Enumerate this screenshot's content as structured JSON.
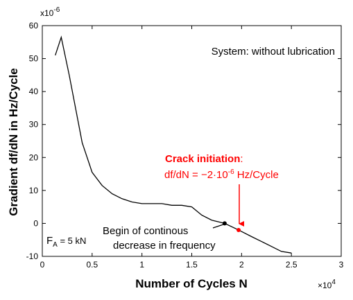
{
  "chart_data": {
    "type": "line",
    "xlabel": "Number of Cycles N",
    "ylabel": "Gradient df/dN in Hz/Cycle",
    "x_multiplier": "×10",
    "x_multiplier_exp": "4",
    "y_multiplier": "x10",
    "y_multiplier_exp": "-6",
    "xlim": [
      0,
      3
    ],
    "ylim": [
      -10,
      60
    ],
    "x_ticks": [
      0,
      0.5,
      1,
      1.5,
      2,
      2.5,
      3
    ],
    "x_tick_labels": [
      "0",
      "0.5",
      "1",
      "1.5",
      "2",
      "2.5",
      "3"
    ],
    "y_ticks": [
      -10,
      0,
      10,
      20,
      30,
      40,
      50,
      60
    ],
    "y_tick_labels": [
      "-10",
      "0",
      "10",
      "20",
      "30",
      "40",
      "50",
      "60"
    ],
    "grid": false,
    "box": true,
    "series": [
      {
        "color": "#000000",
        "x": [
          0.13,
          0.19,
          0.27,
          0.4,
          0.5,
          0.6,
          0.7,
          0.8,
          0.9,
          1.0,
          1.1,
          1.2,
          1.3,
          1.4,
          1.5,
          1.6,
          1.7,
          1.83,
          1.97,
          2.1,
          2.2,
          2.3,
          2.4,
          2.5
        ],
        "y": [
          51,
          56.5,
          45,
          24.5,
          15.5,
          11.5,
          9,
          7.5,
          6.5,
          6,
          6,
          6,
          5.5,
          5.5,
          5,
          2.5,
          1,
          0,
          -2,
          -4,
          -5.5,
          -7,
          -8.5,
          -9
        ]
      }
    ],
    "markers": [
      {
        "name": "begin-decrease-point",
        "x": 1.83,
        "y": 0,
        "color": "#000000"
      },
      {
        "name": "crack-initiation-point",
        "x": 1.97,
        "y": -2,
        "color": "#ff0000"
      }
    ],
    "annotations": {
      "system": "System: without lubrication",
      "crack_title": "Crack initiation",
      "crack_colon": ":",
      "crack_formula_a": "df/dN = −2·10",
      "crack_formula_exp": "-6",
      "crack_formula_b": " Hz/Cycle",
      "begin_line1": "Begin of continous",
      "begin_line2": "decrease in frequency",
      "force_F": "F",
      "force_sub": "A",
      "force_value": " = 5 kN"
    },
    "colors": {
      "line": "#000000",
      "highlight": "#ff0000"
    }
  }
}
